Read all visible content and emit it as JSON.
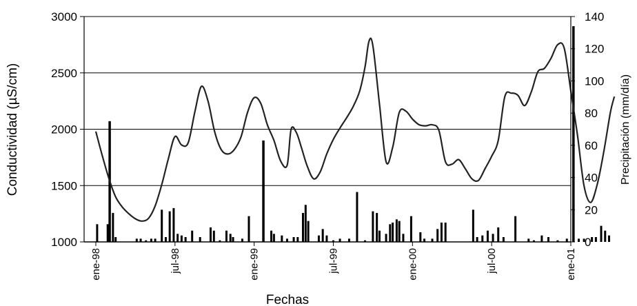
{
  "chart_data": {
    "type": "line+bar",
    "title": "",
    "xlabel": "Fechas",
    "ylabel": "Conductividad (µS/cm)",
    "y2label": "Precipitación (mm/día)",
    "x_tick_labels": [
      "ene-98",
      "jul-98",
      "ene-99",
      "jul-99",
      "ene-00",
      "jul-00",
      "ene-01"
    ],
    "x_tick_months": [
      0,
      6,
      12,
      18,
      24,
      30,
      36
    ],
    "x_range_months": [
      0,
      36
    ],
    "y_range": [
      1000,
      3000
    ],
    "y_ticks": [
      1000,
      1500,
      2000,
      2500,
      3000
    ],
    "y2_range": [
      0,
      140
    ],
    "y2_ticks": [
      0,
      20,
      40,
      60,
      80,
      100,
      120,
      140
    ],
    "grid": "horizontal",
    "legend": "none",
    "series": [
      {
        "type": "line",
        "axis": "left",
        "points": [
          [
            0.0,
            1980
          ],
          [
            0.5,
            1760
          ],
          [
            1.0,
            1560
          ],
          [
            1.5,
            1400
          ],
          [
            2.0,
            1310
          ],
          [
            2.5,
            1250
          ],
          [
            3.0,
            1205
          ],
          [
            3.5,
            1185
          ],
          [
            4.0,
            1210
          ],
          [
            4.5,
            1320
          ],
          [
            5.0,
            1510
          ],
          [
            5.5,
            1740
          ],
          [
            6.0,
            1935
          ],
          [
            6.5,
            1860
          ],
          [
            7.0,
            1880
          ],
          [
            7.5,
            2150
          ],
          [
            8.0,
            2380
          ],
          [
            8.5,
            2250
          ],
          [
            9.0,
            1980
          ],
          [
            9.5,
            1820
          ],
          [
            10.0,
            1780
          ],
          [
            10.5,
            1820
          ],
          [
            11.0,
            1930
          ],
          [
            11.5,
            2150
          ],
          [
            12.0,
            2280
          ],
          [
            12.5,
            2230
          ],
          [
            13.0,
            2040
          ],
          [
            13.5,
            1900
          ],
          [
            14.0,
            1720
          ],
          [
            14.5,
            1680
          ],
          [
            14.8,
            2000
          ],
          [
            15.2,
            1970
          ],
          [
            15.6,
            1830
          ],
          [
            16.0,
            1680
          ],
          [
            16.5,
            1560
          ],
          [
            17.0,
            1620
          ],
          [
            17.5,
            1780
          ],
          [
            18.0,
            1910
          ],
          [
            18.5,
            2010
          ],
          [
            19.0,
            2100
          ],
          [
            19.5,
            2200
          ],
          [
            20.0,
            2340
          ],
          [
            20.4,
            2550
          ],
          [
            20.7,
            2780
          ],
          [
            21.0,
            2740
          ],
          [
            21.5,
            2220
          ],
          [
            22.0,
            1710
          ],
          [
            22.5,
            1840
          ],
          [
            23.0,
            2150
          ],
          [
            23.5,
            2160
          ],
          [
            24.0,
            2090
          ],
          [
            24.5,
            2040
          ],
          [
            25.0,
            2030
          ],
          [
            25.5,
            2040
          ],
          [
            26.0,
            1990
          ],
          [
            26.5,
            1710
          ],
          [
            27.0,
            1690
          ],
          [
            27.5,
            1730
          ],
          [
            28.0,
            1650
          ],
          [
            28.5,
            1560
          ],
          [
            29.0,
            1545
          ],
          [
            29.5,
            1650
          ],
          [
            30.0,
            1760
          ],
          [
            30.5,
            1900
          ],
          [
            31.0,
            2290
          ],
          [
            31.5,
            2320
          ],
          [
            32.0,
            2300
          ],
          [
            32.5,
            2210
          ],
          [
            33.0,
            2330
          ],
          [
            33.5,
            2510
          ],
          [
            34.0,
            2540
          ],
          [
            34.5,
            2630
          ],
          [
            35.0,
            2750
          ],
          [
            35.5,
            2720
          ],
          [
            36.0,
            2340
          ],
          [
            36.5,
            1950
          ],
          [
            37.0,
            1500
          ],
          [
            37.5,
            1350
          ],
          [
            38.0,
            1510
          ],
          [
            38.5,
            1800
          ],
          [
            39.0,
            2150
          ],
          [
            39.3,
            2290
          ]
        ]
      },
      {
        "type": "bar",
        "axis": "right",
        "points": [
          [
            0.1,
            11
          ],
          [
            0.9,
            11
          ],
          [
            1.05,
            75
          ],
          [
            1.3,
            18
          ],
          [
            1.5,
            3
          ],
          [
            3.1,
            2
          ],
          [
            3.4,
            2
          ],
          [
            3.8,
            1
          ],
          [
            4.2,
            2
          ],
          [
            4.5,
            2
          ],
          [
            5.0,
            20
          ],
          [
            5.3,
            3
          ],
          [
            5.6,
            19
          ],
          [
            5.9,
            21
          ],
          [
            6.2,
            5
          ],
          [
            6.5,
            4
          ],
          [
            6.8,
            3
          ],
          [
            7.3,
            7
          ],
          [
            7.9,
            3
          ],
          [
            8.7,
            9
          ],
          [
            8.95,
            7
          ],
          [
            9.4,
            1
          ],
          [
            9.9,
            7
          ],
          [
            10.2,
            5
          ],
          [
            10.4,
            3
          ],
          [
            11.1,
            2
          ],
          [
            11.6,
            16
          ],
          [
            12.7,
            63
          ],
          [
            13.3,
            7
          ],
          [
            13.5,
            5
          ],
          [
            14.1,
            4
          ],
          [
            14.5,
            2
          ],
          [
            15.0,
            3
          ],
          [
            15.3,
            3
          ],
          [
            15.7,
            18
          ],
          [
            15.9,
            23
          ],
          [
            16.1,
            13
          ],
          [
            16.9,
            4
          ],
          [
            17.2,
            8
          ],
          [
            17.5,
            4
          ],
          [
            18.0,
            1
          ],
          [
            18.5,
            2
          ],
          [
            19.2,
            2
          ],
          [
            19.8,
            31
          ],
          [
            20.4,
            1
          ],
          [
            21.0,
            19
          ],
          [
            21.3,
            18
          ],
          [
            21.5,
            7
          ],
          [
            22.0,
            5
          ],
          [
            22.3,
            11
          ],
          [
            22.5,
            12
          ],
          [
            22.8,
            14
          ],
          [
            23.0,
            13
          ],
          [
            23.3,
            5
          ],
          [
            23.9,
            16
          ],
          [
            24.6,
            6
          ],
          [
            24.9,
            2
          ],
          [
            25.5,
            2
          ],
          [
            25.9,
            8
          ],
          [
            26.2,
            12
          ],
          [
            26.5,
            12
          ],
          [
            28.6,
            20
          ],
          [
            28.9,
            3
          ],
          [
            29.3,
            4
          ],
          [
            29.7,
            7
          ],
          [
            30.1,
            5
          ],
          [
            30.5,
            9
          ],
          [
            30.9,
            3
          ],
          [
            31.8,
            16
          ],
          [
            32.8,
            2
          ],
          [
            33.2,
            1
          ],
          [
            33.8,
            4
          ],
          [
            34.3,
            3
          ],
          [
            35.0,
            1
          ],
          [
            35.7,
            2
          ],
          [
            36.2,
            134
          ],
          [
            36.6,
            2
          ],
          [
            37.0,
            2
          ],
          [
            37.6,
            3
          ],
          [
            37.9,
            3
          ],
          [
            38.3,
            10
          ],
          [
            38.6,
            7
          ],
          [
            38.9,
            4
          ]
        ]
      }
    ]
  }
}
